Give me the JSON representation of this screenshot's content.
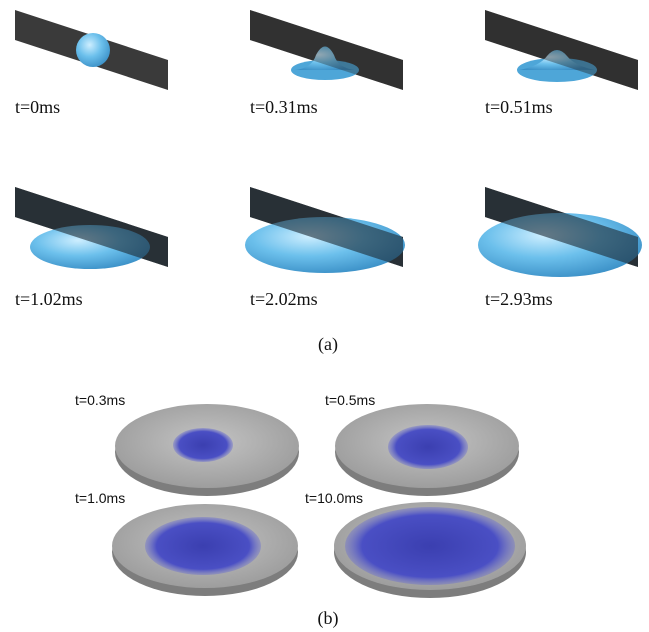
{
  "panel_a": {
    "caption": "(a)",
    "frames": [
      "t=0ms",
      "t=0.31ms",
      "t=0.51ms",
      "t=1.02ms",
      "t=2.02ms",
      "t=2.93ms"
    ]
  },
  "panel_b": {
    "caption": "(b)",
    "frames": [
      "t=0.3ms",
      "t=0.5ms",
      "t=1.0ms",
      "t=10.0ms"
    ]
  }
}
